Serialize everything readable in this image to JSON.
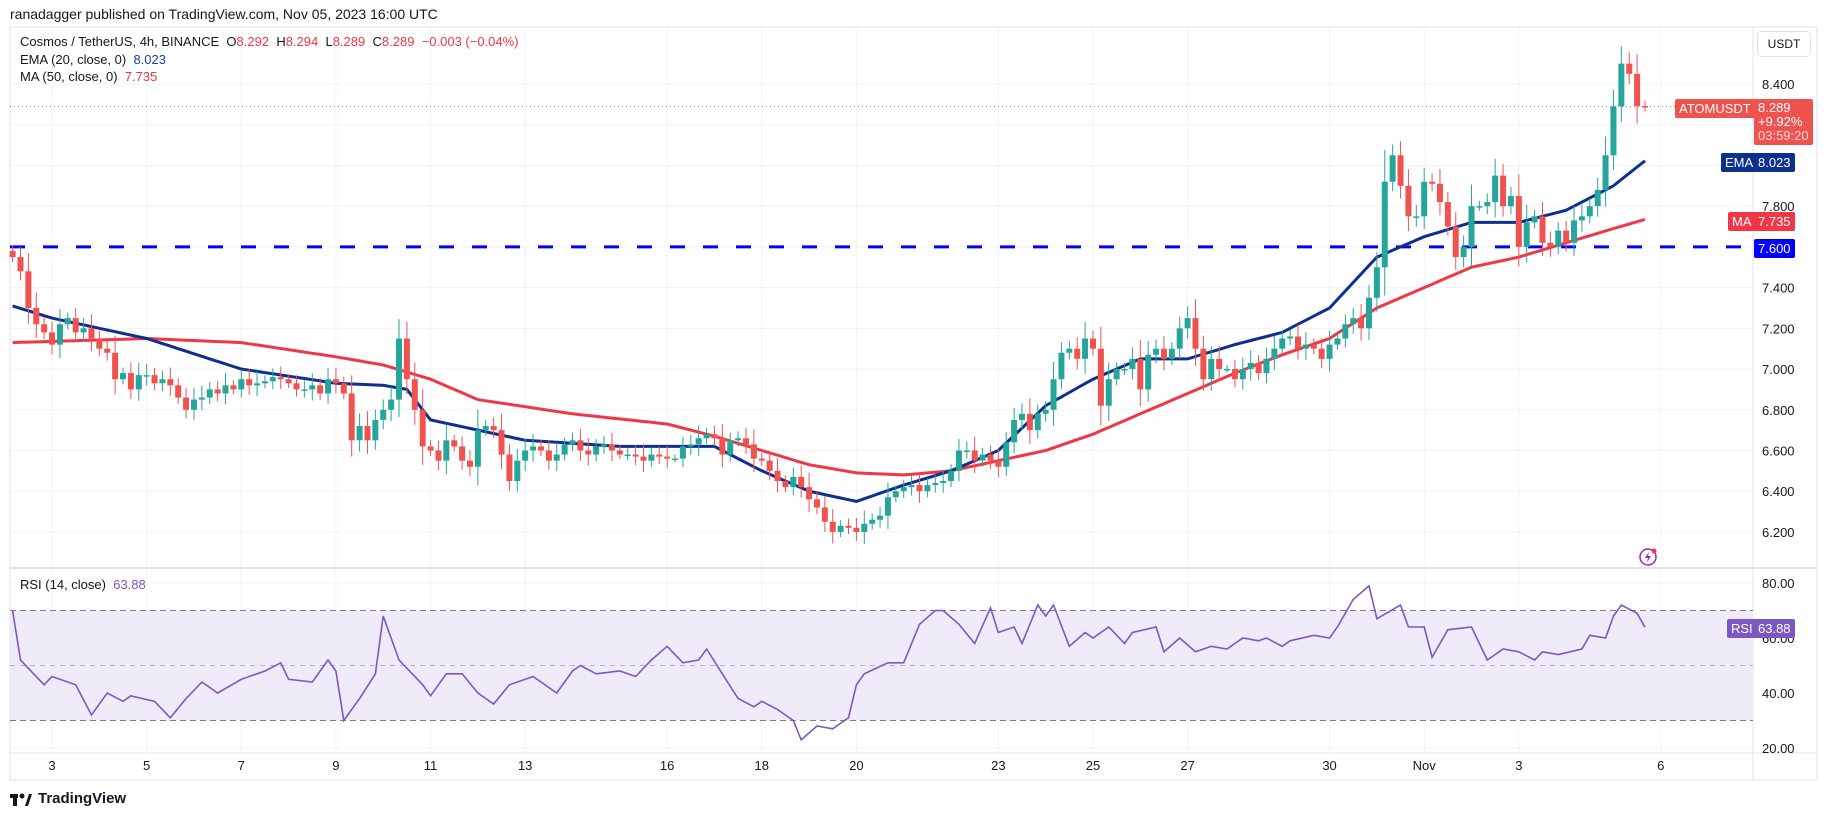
{
  "published": "ranadagger published on TradingView.com, Nov 05, 2023 16:00 UTC",
  "legend": {
    "symbol": "Cosmos / TetherUS, 4h, BINANCE",
    "o_label": "O",
    "o": "8.292",
    "h_label": "H",
    "h": "8.294",
    "l_label": "L",
    "l": "8.289",
    "c_label": "C",
    "c": "8.289",
    "change": "−0.003 (−0.04%)",
    "ema_label": "EMA (20, close, 0)",
    "ema_value": "8.023",
    "ma_label": "MA (50, close, 0)",
    "ma_value": "7.735",
    "rsi_label": "RSI (14, close)",
    "rsi_value": "63.88"
  },
  "axis": {
    "currency": "USDT",
    "price_ticks": [
      "8.400",
      "7.800",
      "7.400",
      "7.200",
      "7.000",
      "6.800",
      "6.600",
      "6.400",
      "6.200"
    ],
    "rsi_ticks": [
      "80.00",
      "60.00",
      "40.00",
      "20.00"
    ],
    "time_ticks": [
      {
        "label": "3",
        "bar": 5
      },
      {
        "label": "5",
        "bar": 17
      },
      {
        "label": "7",
        "bar": 29
      },
      {
        "label": "9",
        "bar": 41
      },
      {
        "label": "11",
        "bar": 53
      },
      {
        "label": "13",
        "bar": 65
      },
      {
        "label": "16",
        "bar": 83
      },
      {
        "label": "18",
        "bar": 95
      },
      {
        "label": "20",
        "bar": 107
      },
      {
        "label": "23",
        "bar": 125
      },
      {
        "label": "25",
        "bar": 137
      },
      {
        "label": "27",
        "bar": 149
      },
      {
        "label": "30",
        "bar": 167
      },
      {
        "label": "Nov",
        "bar": 179
      },
      {
        "label": "3",
        "bar": 191
      },
      {
        "label": "6",
        "bar": 209
      }
    ]
  },
  "tags": {
    "symbol": "ATOMUSDT",
    "price": "8.289",
    "change_pct": "+9.92%",
    "countdown": "03:59:20",
    "ema_name": "EMA",
    "ema": "8.023",
    "ma_name": "MA",
    "ma": "7.735",
    "level": "7.600",
    "rsi_name": "RSI",
    "rsi": "63.88"
  },
  "brand": "TradingView",
  "colors": {
    "up": "#26a69a",
    "down": "#ef5350",
    "ema": "#0d2f8f",
    "ma": "#f23645",
    "level": "#0000ff",
    "rsi": "#7e57c2",
    "rsi_band": "#efebf8"
  },
  "chart_data": {
    "type": "candlestick",
    "title": "Cosmos / TetherUS, 4h, BINANCE",
    "ylim": [
      6.1,
      8.6
    ],
    "horizontal_level": 7.6,
    "last_price": 8.289,
    "close": [
      7.55,
      7.48,
      7.3,
      7.22,
      7.18,
      7.12,
      7.22,
      7.25,
      7.18,
      7.2,
      7.15,
      7.1,
      7.08,
      6.95,
      6.98,
      6.9,
      6.97,
      6.97,
      6.93,
      6.95,
      6.92,
      6.86,
      6.8,
      6.85,
      6.86,
      6.9,
      6.88,
      6.92,
      6.9,
      6.95,
      6.92,
      6.93,
      6.94,
      6.96,
      6.95,
      6.93,
      6.9,
      6.9,
      6.92,
      6.88,
      6.95,
      6.93,
      6.88,
      6.65,
      6.72,
      6.65,
      6.75,
      6.8,
      6.85,
      7.15,
      6.95,
      6.8,
      6.62,
      6.6,
      6.55,
      6.65,
      6.62,
      6.55,
      6.52,
      6.7,
      6.72,
      6.7,
      6.58,
      6.45,
      6.55,
      6.6,
      6.62,
      6.6,
      6.55,
      6.58,
      6.63,
      6.65,
      6.6,
      6.58,
      6.62,
      6.63,
      6.6,
      6.58,
      6.58,
      6.57,
      6.55,
      6.58,
      6.57,
      6.56,
      6.56,
      6.62,
      6.63,
      6.66,
      6.68,
      6.66,
      6.58,
      6.65,
      6.66,
      6.63,
      6.56,
      6.55,
      6.5,
      6.45,
      6.42,
      6.47,
      6.42,
      6.36,
      6.32,
      6.25,
      6.2,
      6.23,
      6.22,
      6.2,
      6.24,
      6.26,
      6.28,
      6.37,
      6.4,
      6.42,
      6.43,
      6.4,
      6.43,
      6.44,
      6.45,
      6.5,
      6.6,
      6.6,
      6.55,
      6.58,
      6.55,
      6.52,
      6.64,
      6.75,
      6.78,
      6.7,
      6.78,
      6.8,
      6.95,
      7.08,
      7.1,
      7.05,
      7.15,
      7.1,
      6.82,
      6.95,
      7.0,
      7.0,
      7.05,
      6.9,
      7.07,
      7.1,
      7.05,
      7.1,
      7.2,
      7.25,
      7.1,
      6.95,
      7.05,
      7.0,
      7.0,
      6.95,
      7.0,
      7.03,
      6.98,
      7.05,
      7.1,
      7.15,
      7.16,
      7.1,
      7.12,
      7.1,
      7.05,
      7.12,
      7.15,
      7.22,
      7.25,
      7.2,
      7.35,
      7.5,
      7.92,
      8.05,
      7.9,
      7.75,
      7.75,
      7.92,
      7.91,
      7.82,
      7.7,
      7.55,
      7.6,
      7.8,
      7.8,
      7.82,
      7.95,
      7.8,
      7.85,
      7.6,
      7.72,
      7.75,
      7.62,
      7.6,
      7.68,
      7.62,
      7.73,
      7.75,
      7.8,
      7.88,
      8.05,
      8.29,
      8.5,
      8.45,
      8.292,
      8.289
    ],
    "ema20": [
      [
        0,
        7.31
      ],
      [
        5,
        7.25
      ],
      [
        17,
        7.15
      ],
      [
        29,
        7.0
      ],
      [
        41,
        6.93
      ],
      [
        47,
        6.92
      ],
      [
        50,
        6.9
      ],
      [
        53,
        6.75
      ],
      [
        65,
        6.65
      ],
      [
        77,
        6.62
      ],
      [
        89,
        6.62
      ],
      [
        95,
        6.5
      ],
      [
        101,
        6.4
      ],
      [
        107,
        6.35
      ],
      [
        113,
        6.43
      ],
      [
        119,
        6.5
      ],
      [
        125,
        6.6
      ],
      [
        131,
        6.82
      ],
      [
        137,
        6.95
      ],
      [
        143,
        7.05
      ],
      [
        149,
        7.05
      ],
      [
        155,
        7.12
      ],
      [
        161,
        7.18
      ],
      [
        167,
        7.3
      ],
      [
        173,
        7.55
      ],
      [
        179,
        7.65
      ],
      [
        185,
        7.72
      ],
      [
        191,
        7.72
      ],
      [
        197,
        7.78
      ],
      [
        203,
        7.9
      ],
      [
        207,
        8.023
      ]
    ],
    "ma50": [
      [
        0,
        7.13
      ],
      [
        17,
        7.15
      ],
      [
        29,
        7.13
      ],
      [
        41,
        7.06
      ],
      [
        47,
        7.02
      ],
      [
        53,
        6.95
      ],
      [
        59,
        6.85
      ],
      [
        71,
        6.78
      ],
      [
        83,
        6.73
      ],
      [
        89,
        6.67
      ],
      [
        95,
        6.6
      ],
      [
        101,
        6.53
      ],
      [
        107,
        6.49
      ],
      [
        113,
        6.48
      ],
      [
        119,
        6.5
      ],
      [
        125,
        6.55
      ],
      [
        131,
        6.6
      ],
      [
        137,
        6.68
      ],
      [
        143,
        6.78
      ],
      [
        149,
        6.88
      ],
      [
        155,
        6.98
      ],
      [
        161,
        7.07
      ],
      [
        167,
        7.15
      ],
      [
        173,
        7.3
      ],
      [
        179,
        7.4
      ],
      [
        185,
        7.5
      ],
      [
        191,
        7.55
      ],
      [
        197,
        7.62
      ],
      [
        203,
        7.69
      ],
      [
        207,
        7.735
      ]
    ],
    "rsi": [
      [
        0,
        70
      ],
      [
        1,
        52
      ],
      [
        4,
        43
      ],
      [
        5,
        46
      ],
      [
        8,
        43
      ],
      [
        10,
        32
      ],
      [
        12,
        40
      ],
      [
        14,
        37
      ],
      [
        15,
        39
      ],
      [
        18,
        37
      ],
      [
        20,
        31
      ],
      [
        22,
        38
      ],
      [
        24,
        44
      ],
      [
        26,
        40
      ],
      [
        29,
        45
      ],
      [
        32,
        48
      ],
      [
        34,
        51
      ],
      [
        35,
        45
      ],
      [
        38,
        44
      ],
      [
        40,
        52
      ],
      [
        41,
        48
      ],
      [
        42,
        30
      ],
      [
        44,
        38
      ],
      [
        46,
        47
      ],
      [
        47,
        68
      ],
      [
        49,
        52
      ],
      [
        52,
        43
      ],
      [
        53,
        39
      ],
      [
        55,
        47
      ],
      [
        57,
        47
      ],
      [
        59,
        40
      ],
      [
        61,
        36
      ],
      [
        63,
        43
      ],
      [
        66,
        46
      ],
      [
        67,
        44
      ],
      [
        69,
        40
      ],
      [
        71,
        48
      ],
      [
        72,
        50
      ],
      [
        74,
        47
      ],
      [
        77,
        48
      ],
      [
        79,
        46
      ],
      [
        81,
        52
      ],
      [
        83,
        57
      ],
      [
        85,
        51
      ],
      [
        87,
        52
      ],
      [
        88,
        56
      ],
      [
        90,
        47
      ],
      [
        92,
        38
      ],
      [
        94,
        35
      ],
      [
        95,
        37
      ],
      [
        97,
        34
      ],
      [
        99,
        30
      ],
      [
        100,
        23
      ],
      [
        102,
        28
      ],
      [
        104,
        27
      ],
      [
        106,
        31
      ],
      [
        107,
        43
      ],
      [
        108,
        47
      ],
      [
        111,
        51
      ],
      [
        113,
        51
      ],
      [
        115,
        65
      ],
      [
        117,
        70
      ],
      [
        118,
        70
      ],
      [
        120,
        65
      ],
      [
        122,
        58
      ],
      [
        124,
        71
      ],
      [
        125,
        62
      ],
      [
        127,
        64
      ],
      [
        128,
        58
      ],
      [
        130,
        72
      ],
      [
        131,
        68
      ],
      [
        132,
        72
      ],
      [
        134,
        57
      ],
      [
        136,
        62
      ],
      [
        137,
        60
      ],
      [
        139,
        64
      ],
      [
        141,
        58
      ],
      [
        142,
        62
      ],
      [
        145,
        64
      ],
      [
        146,
        55
      ],
      [
        148,
        60
      ],
      [
        150,
        55
      ],
      [
        152,
        57
      ],
      [
        154,
        56
      ],
      [
        156,
        60
      ],
      [
        158,
        59
      ],
      [
        159,
        60
      ],
      [
        161,
        57
      ],
      [
        162,
        59
      ],
      [
        165,
        61
      ],
      [
        167,
        60
      ],
      [
        168,
        64
      ],
      [
        170,
        74
      ],
      [
        172,
        79
      ],
      [
        173,
        67
      ],
      [
        176,
        72
      ],
      [
        177,
        64
      ],
      [
        179,
        64
      ],
      [
        180,
        53
      ],
      [
        182,
        63
      ],
      [
        185,
        64
      ],
      [
        186,
        58
      ],
      [
        187,
        52
      ],
      [
        189,
        56
      ],
      [
        191,
        55
      ],
      [
        193,
        52
      ],
      [
        194,
        55
      ],
      [
        196,
        54
      ],
      [
        199,
        56
      ],
      [
        200,
        61
      ],
      [
        202,
        60
      ],
      [
        203,
        68
      ],
      [
        204,
        72
      ],
      [
        206,
        69
      ],
      [
        207,
        63.88
      ]
    ],
    "rsi_levels": [
      70,
      50,
      30
    ],
    "rsi_ylim": [
      17,
      87
    ]
  }
}
